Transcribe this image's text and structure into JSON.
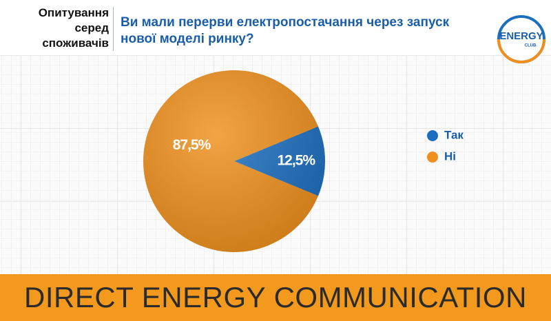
{
  "header": {
    "survey_label": "Опитування серед споживачів"
  },
  "logo": {
    "name": "ENERGY",
    "sub": "CLUB"
  },
  "footer": {
    "text": "DIRECT ENERGY COMMUNICATION"
  },
  "chart_data": {
    "type": "pie",
    "title": "Ви мали перерви електропостачання через запуск нової моделі ринку?",
    "categories": [
      "Так",
      "Ні"
    ],
    "values": [
      12.5,
      87.5
    ],
    "value_labels": [
      "12,5%",
      "87,5%"
    ],
    "colors": [
      "#1c6fbf",
      "#f0901c"
    ],
    "legend": "right"
  }
}
